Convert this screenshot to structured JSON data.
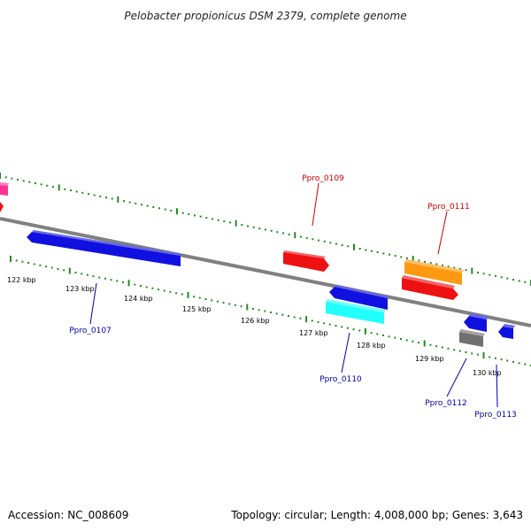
{
  "title": "Pelobacter propionicus DSM 2379, complete genome",
  "footer": {
    "accession": "Accession: NC_008609",
    "topology": "Topology: circular; Length: 4,008,000 bp; Genes: 3,643"
  },
  "colors": {
    "backbone": "#808080",
    "tick": "#228b22",
    "label_forward": "#cc0000",
    "label_reverse": "#0000aa",
    "gene_blue": "#1010e0",
    "gene_red": "#ee1111",
    "gene_orange": "#ff9910",
    "gene_cyan": "#22ffff",
    "gene_gray": "#707070",
    "gene_pink": "#ff3399"
  },
  "scale_labels": [
    "122 kbp",
    "123 kbp",
    "124 kbp",
    "125 kbp",
    "126 kbp",
    "127 kbp",
    "128 kbp",
    "129 kbp",
    "130 kbp"
  ],
  "genes": [
    {
      "name": "",
      "color": "gene_pink"
    },
    {
      "name": "",
      "color": "gene_red"
    },
    {
      "name": "Ppro_0107",
      "color": "gene_blue"
    },
    {
      "name": "Ppro_0109",
      "color": "gene_red"
    },
    {
      "name": "Ppro_0110",
      "color": "gene_cyan"
    },
    {
      "name": "",
      "color": "gene_blue"
    },
    {
      "name": "Ppro_0111",
      "color": "gene_orange"
    },
    {
      "name": "",
      "color": "gene_red"
    },
    {
      "name": "Ppro_0112",
      "color": "gene_gray"
    },
    {
      "name": "",
      "color": "gene_blue"
    },
    {
      "name": "Ppro_0113",
      "color": "gene_blue"
    }
  ]
}
